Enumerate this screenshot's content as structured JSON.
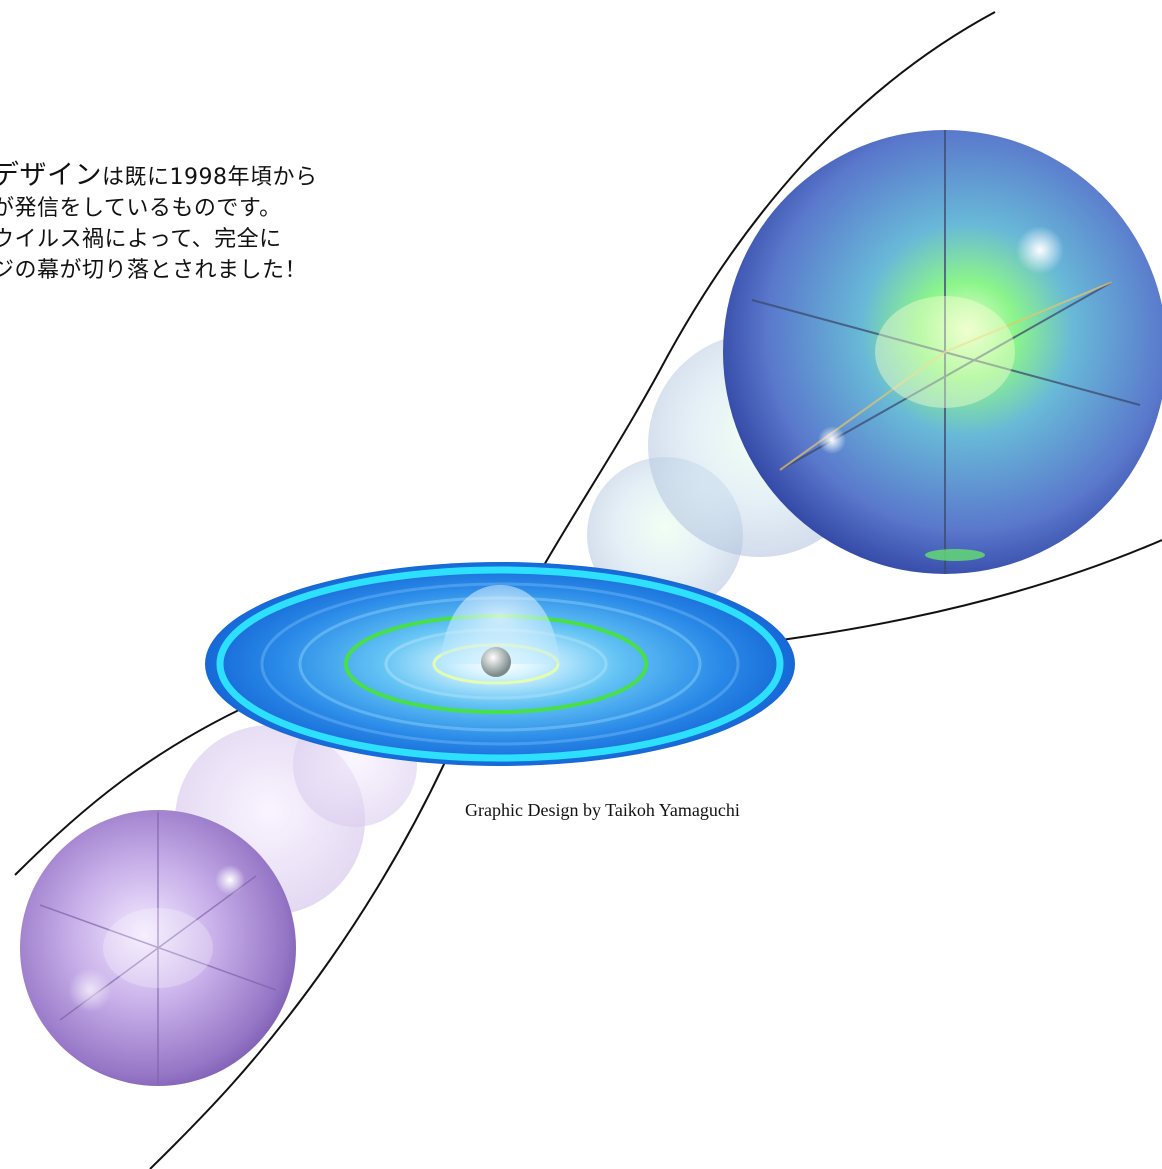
{
  "text_block": {
    "line1_lead": "デザイン",
    "line1_rest": "は既に1998年頃から",
    "line2": "が発信をしているものです。",
    "line3": "ウイルス禍によって、完全に",
    "line4": "ジの幕が切り落とされました！"
  },
  "credit": "Graphic Design by Taikoh Yamaguchi",
  "colors": {
    "background": "#ffffff",
    "blue_sphere": "#3d58c8",
    "sphere_core_glow": "#9cff7a",
    "purple_sphere": "#9a78cc",
    "disc_blue": "#1e7fe6",
    "disc_ring_cyan": "#2ee0ff",
    "disc_ring_green": "#48e04a",
    "curve": "#111111"
  }
}
